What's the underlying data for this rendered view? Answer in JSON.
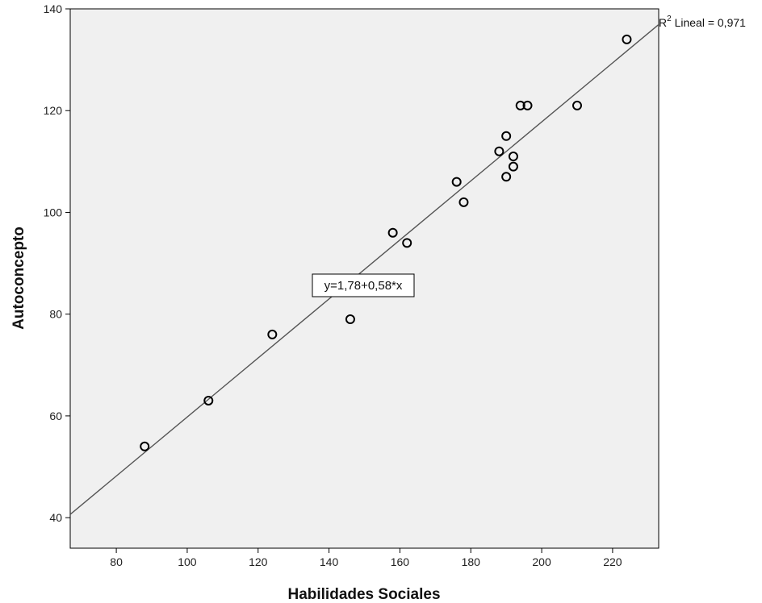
{
  "chart_data": {
    "type": "scatter",
    "xlabel": "Habilidades Sociales",
    "ylabel": "Autoconcepto",
    "xlim": [
      67,
      233
    ],
    "ylim": [
      34,
      140
    ],
    "x_ticks": [
      80,
      100,
      120,
      140,
      160,
      180,
      200,
      220
    ],
    "y_ticks": [
      40,
      60,
      80,
      100,
      120,
      140
    ],
    "grid": false,
    "points": [
      {
        "x": 88,
        "y": 54
      },
      {
        "x": 106,
        "y": 63
      },
      {
        "x": 124,
        "y": 76
      },
      {
        "x": 146,
        "y": 79
      },
      {
        "x": 158,
        "y": 96
      },
      {
        "x": 162,
        "y": 94
      },
      {
        "x": 176,
        "y": 106
      },
      {
        "x": 178,
        "y": 102
      },
      {
        "x": 188,
        "y": 112
      },
      {
        "x": 190,
        "y": 115
      },
      {
        "x": 190,
        "y": 107
      },
      {
        "x": 192,
        "y": 111
      },
      {
        "x": 192,
        "y": 109
      },
      {
        "x": 194,
        "y": 121
      },
      {
        "x": 196,
        "y": 121
      },
      {
        "x": 210,
        "y": 121
      },
      {
        "x": 224,
        "y": 134
      }
    ],
    "fit_line": {
      "intercept": 1.78,
      "slope": 0.58,
      "equation_label": "y=1,78+0,58*x",
      "r2_prefix": "R",
      "r2_sup": "2",
      "r2_suffix": " Lineal = 0,971"
    },
    "colors": {
      "plot_background": "#f0f0f0",
      "marker_stroke": "#000000",
      "line": "#555555"
    }
  }
}
